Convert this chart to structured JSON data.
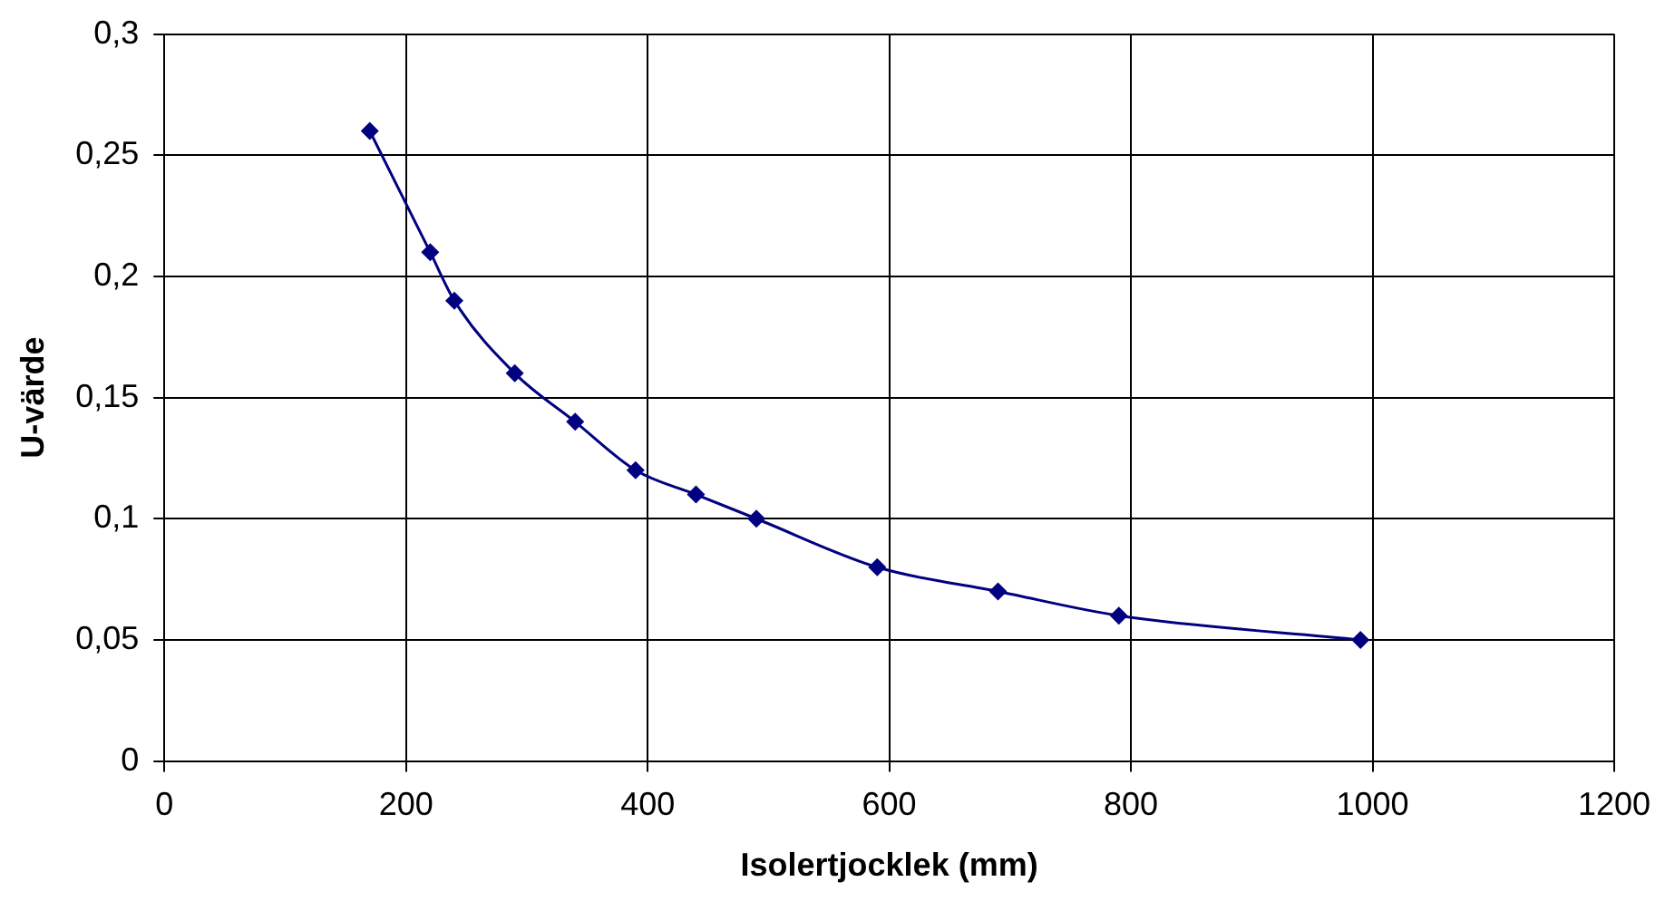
{
  "chart_data": {
    "type": "line",
    "xlabel": "Isolertjocklek (mm)",
    "ylabel": "U-värde",
    "x": [
      170,
      220,
      240,
      290,
      340,
      390,
      440,
      490,
      590,
      690,
      790,
      990
    ],
    "series": [
      {
        "color": "#000080",
        "values": [
          0.26,
          0.21,
          0.19,
          0.16,
          0.14,
          0.12,
          0.11,
          0.1,
          0.08,
          0.07,
          0.06,
          0.05
        ]
      }
    ],
    "xlim": [
      0,
      1200
    ],
    "xticks": [
      0,
      200,
      400,
      600,
      800,
      1000,
      1200
    ],
    "ylim": [
      0,
      0.3
    ],
    "yticks": [
      {
        "value": 0,
        "label": "0"
      },
      {
        "value": 0.05,
        "label": "0,05"
      },
      {
        "value": 0.1,
        "label": "0,1"
      },
      {
        "value": 0.15,
        "label": "0,15"
      },
      {
        "value": 0.2,
        "label": "0,2"
      },
      {
        "value": 0.25,
        "label": "0,25"
      },
      {
        "value": 0.3,
        "label": "0,3"
      }
    ],
    "grid": true,
    "legend": false,
    "marker": "diamond",
    "line_style": "solid"
  }
}
